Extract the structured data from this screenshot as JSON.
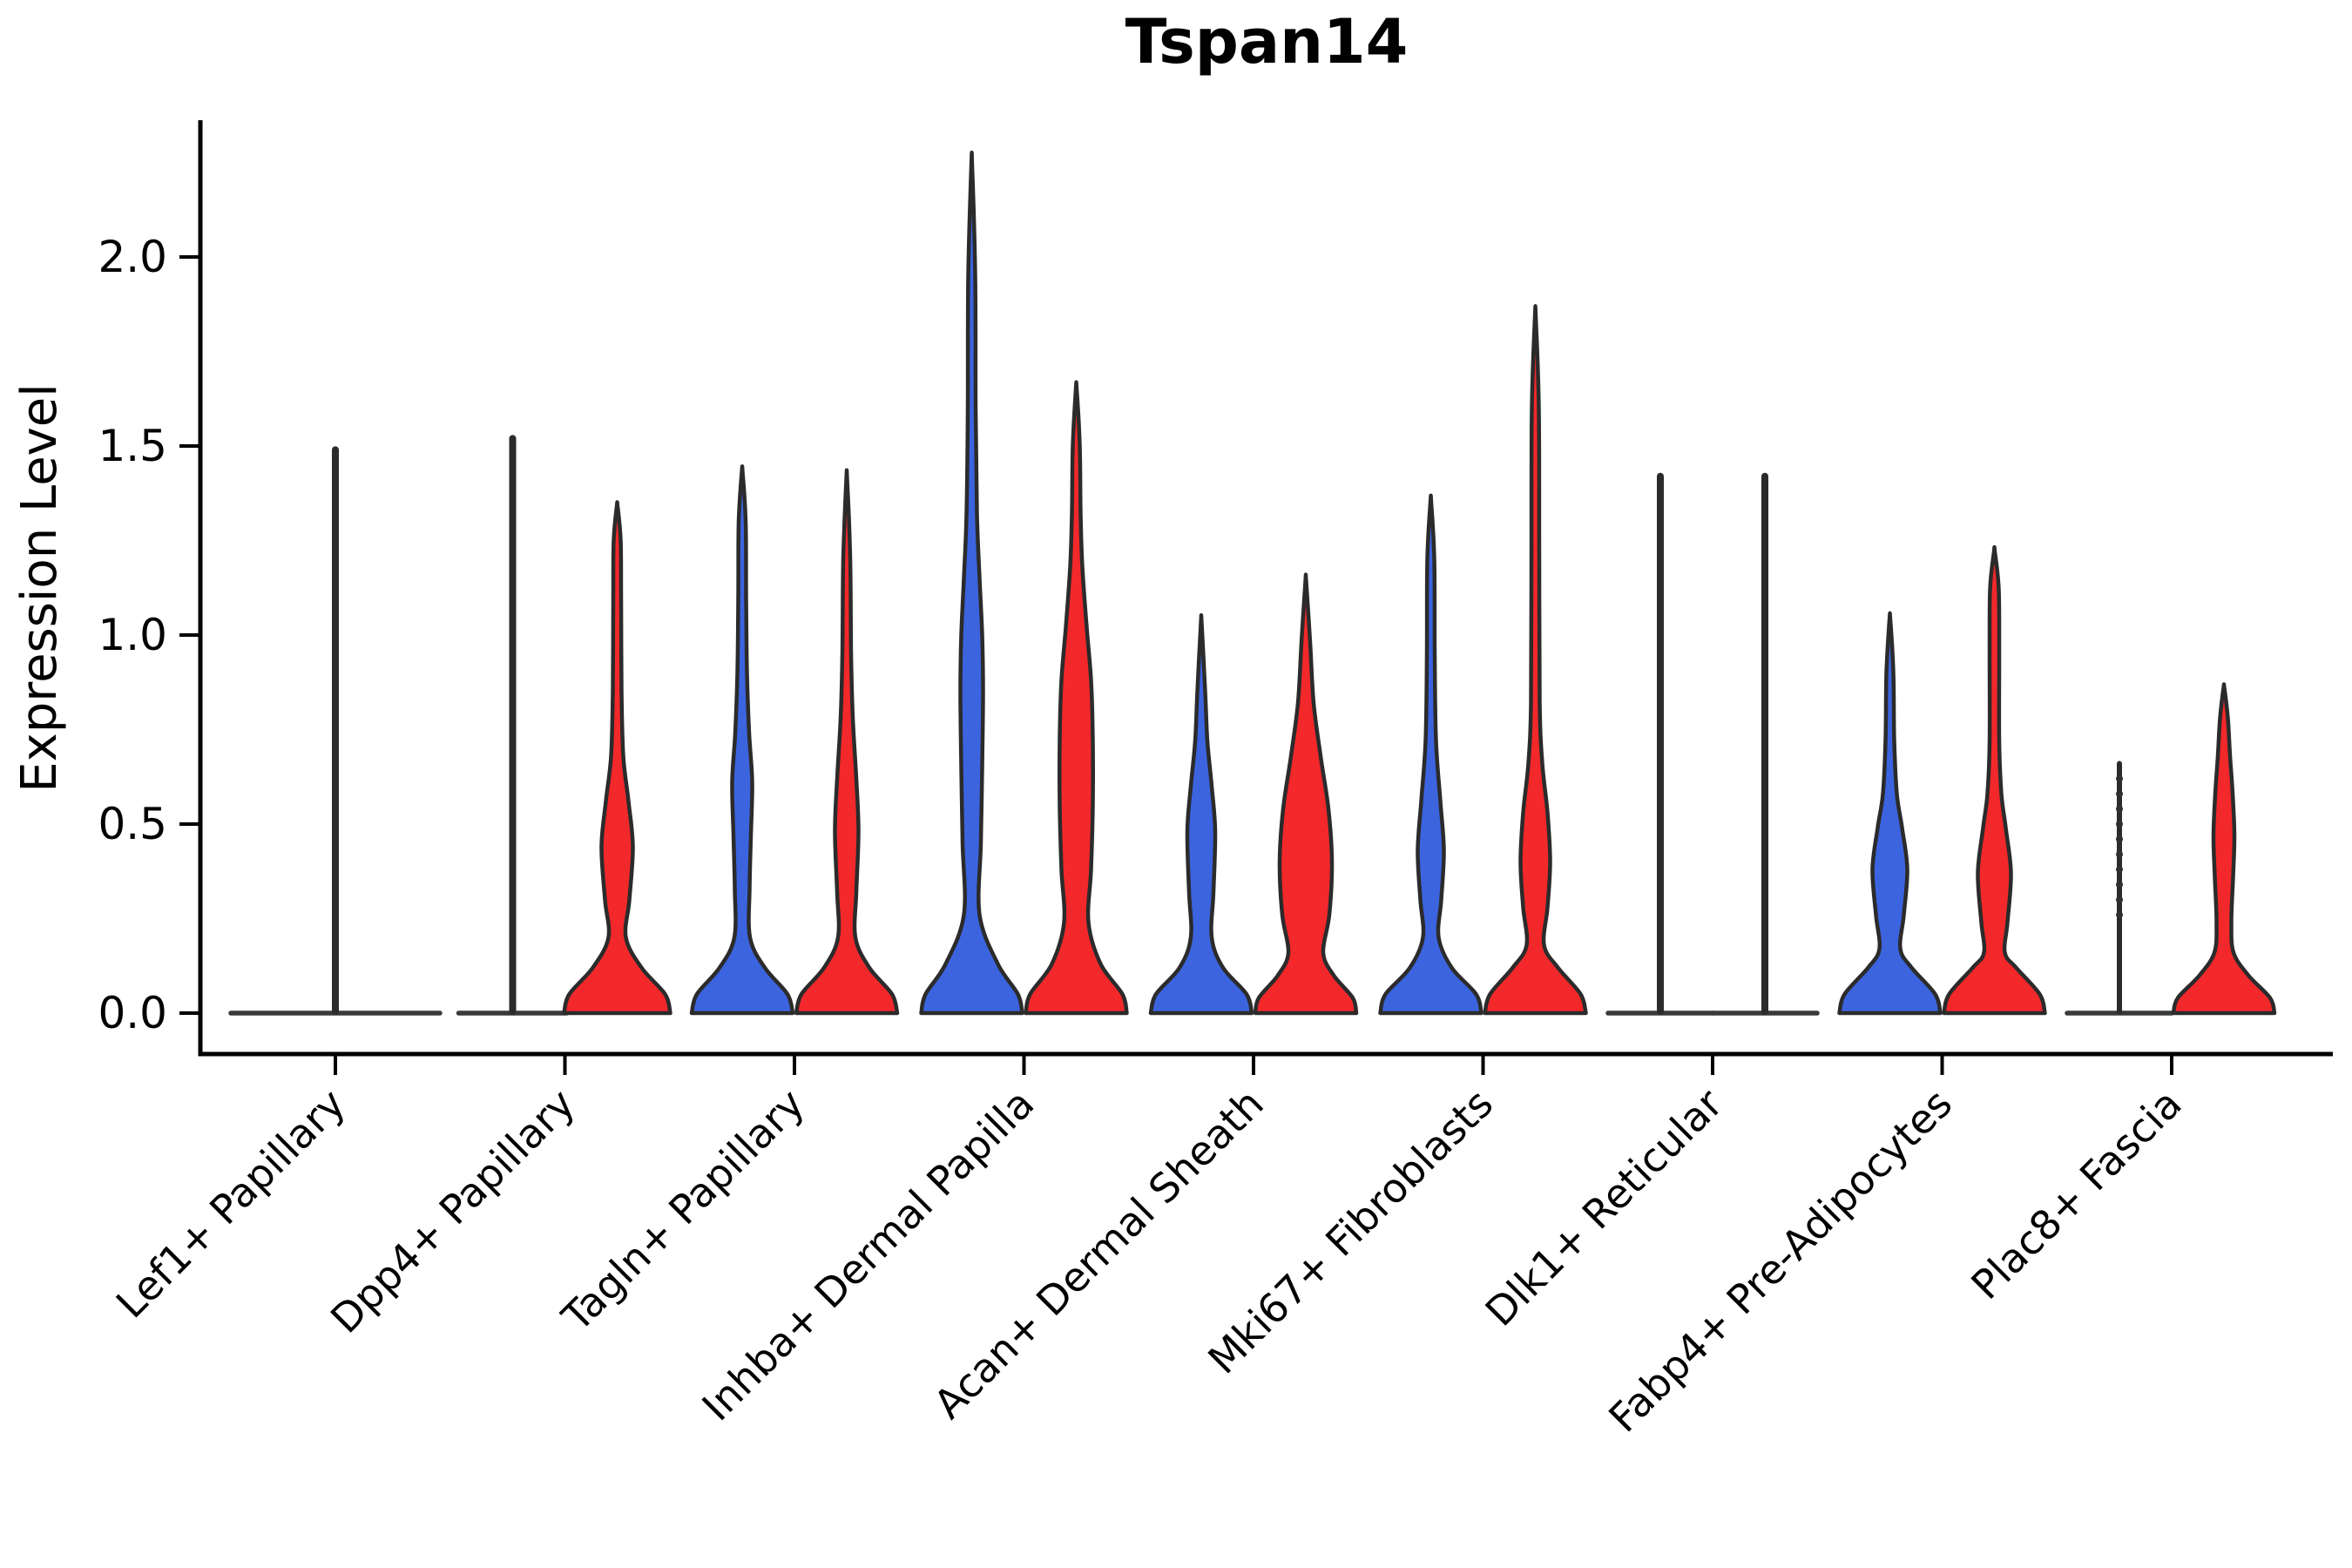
{
  "title": "Tspan14",
  "axes": {
    "ylabel": "Expression Level",
    "ytick_labels": [
      "0.0",
      "0.5",
      "1.0",
      "1.5",
      "2.0"
    ],
    "ytick_values": [
      0.0,
      0.5,
      1.0,
      1.5,
      2.0
    ]
  },
  "colors": {
    "blue": "#3C64DF",
    "red": "#F2282B",
    "outline": "#2B2B2B",
    "flat_line": "#3A3A3A",
    "axis": "#000000",
    "text": "#000000"
  },
  "chart_data": {
    "type": "violin",
    "title": "Tspan14",
    "xlabel": "",
    "ylabel": "Expression Level",
    "yticks": [
      0.0,
      0.5,
      1.0,
      1.5,
      2.0
    ],
    "ylim": [
      -0.11,
      2.36
    ],
    "grid": false,
    "legend_position": "none",
    "groups": [
      "blue (left violin)",
      "red (right violin)"
    ],
    "categories": [
      "Lef1+ Papillary",
      "Dpp4+ Papillary",
      "Tagln+ Papillary",
      "Inhba+ Dermal Papilla",
      "Acan+ Dermal Sheath",
      "Mki67+ Fibroblasts",
      "Dlk1+ Reticular",
      "Fabp4+ Pre-Adipocytes",
      "Plac8+ Fascia"
    ],
    "max_expression_by_violin": {
      "Lef1+ Papillary": {
        "single": 1.49
      },
      "Dpp4+ Papillary": {
        "blue": 1.52,
        "red": 1.34
      },
      "Tagln+ Papillary": {
        "blue": 1.43,
        "red": 1.41
      },
      "Inhba+ Dermal Papilla": {
        "blue": 2.24,
        "red": 1.65
      },
      "Acan+ Dermal Sheath": {
        "blue": 1.03,
        "red": 1.14
      },
      "Mki67+ Fibroblasts": {
        "blue": 1.35,
        "red": 1.84
      },
      "Dlk1+ Reticular": {
        "blue": 1.42,
        "red": 1.42
      },
      "Fabp4+ Pre-Adipocytes": {
        "blue": 1.04,
        "red": 1.22
      },
      "Plac8+ Fascia": {
        "blue": 0.66,
        "red": 0.86
      }
    },
    "violins": [
      {
        "category": 0,
        "group": "single",
        "style": "flat_spike",
        "offset": 0,
        "flat_halfwidth": 120,
        "max": 1.49
      },
      {
        "category": 1,
        "group": "blue",
        "style": "flat_spike",
        "offset": -60,
        "flat_halfwidth": 62,
        "max": 1.52
      },
      {
        "category": 1,
        "group": "red",
        "style": "violin",
        "offset": 60,
        "max": 1.34,
        "profile": [
          [
            0,
            61
          ],
          [
            0.05,
            55
          ],
          [
            0.12,
            28
          ],
          [
            0.2,
            10
          ],
          [
            0.3,
            14
          ],
          [
            0.44,
            18
          ],
          [
            0.56,
            13
          ],
          [
            0.68,
            7
          ],
          [
            0.85,
            5
          ],
          [
            1.1,
            4.5
          ],
          [
            1.25,
            4
          ],
          [
            1.34,
            0.5
          ]
        ]
      },
      {
        "category": 2,
        "group": "blue",
        "style": "violin",
        "offset": -60,
        "max": 1.43,
        "profile": [
          [
            0,
            58
          ],
          [
            0.05,
            52
          ],
          [
            0.12,
            26
          ],
          [
            0.2,
            9
          ],
          [
            0.33,
            8.5
          ],
          [
            0.47,
            10
          ],
          [
            0.61,
            11.5
          ],
          [
            0.74,
            8
          ],
          [
            0.9,
            5.5
          ],
          [
            1.1,
            4.5
          ],
          [
            1.3,
            4
          ],
          [
            1.43,
            0.5
          ]
        ]
      },
      {
        "category": 2,
        "group": "red",
        "style": "violin",
        "offset": 60,
        "max": 1.41,
        "profile": [
          [
            0,
            58
          ],
          [
            0.05,
            52
          ],
          [
            0.12,
            26
          ],
          [
            0.2,
            10
          ],
          [
            0.32,
            11
          ],
          [
            0.48,
            13.5
          ],
          [
            0.62,
            11
          ],
          [
            0.78,
            7
          ],
          [
            0.95,
            5
          ],
          [
            1.2,
            4
          ],
          [
            1.41,
            0.5
          ]
        ]
      },
      {
        "category": 3,
        "group": "blue",
        "style": "violin",
        "offset": -60,
        "max": 2.24,
        "profile": [
          [
            0,
            58
          ],
          [
            0.05,
            53
          ],
          [
            0.13,
            30
          ],
          [
            0.26,
            9
          ],
          [
            0.45,
            10.5
          ],
          [
            0.65,
            12
          ],
          [
            0.85,
            13
          ],
          [
            1.0,
            12
          ],
          [
            1.15,
            9
          ],
          [
            1.32,
            6
          ],
          [
            1.6,
            4.5
          ],
          [
            1.95,
            4
          ],
          [
            2.24,
            0.5
          ]
        ]
      },
      {
        "category": 3,
        "group": "red",
        "style": "violin",
        "offset": 60,
        "max": 1.65,
        "profile": [
          [
            0,
            58
          ],
          [
            0.05,
            53
          ],
          [
            0.13,
            28
          ],
          [
            0.24,
            14
          ],
          [
            0.38,
            17
          ],
          [
            0.55,
            19
          ],
          [
            0.72,
            19
          ],
          [
            0.88,
            17
          ],
          [
            1.02,
            12
          ],
          [
            1.18,
            7
          ],
          [
            1.32,
            5
          ],
          [
            1.5,
            4
          ],
          [
            1.65,
            0.5
          ]
        ]
      },
      {
        "category": 4,
        "group": "blue",
        "style": "violin",
        "offset": -60,
        "max": 1.03,
        "profile": [
          [
            0,
            58
          ],
          [
            0.05,
            52
          ],
          [
            0.12,
            25
          ],
          [
            0.2,
            12
          ],
          [
            0.32,
            14
          ],
          [
            0.48,
            16
          ],
          [
            0.6,
            12
          ],
          [
            0.72,
            7
          ],
          [
            0.85,
            4.5
          ],
          [
            1.03,
            0.5
          ]
        ]
      },
      {
        "category": 4,
        "group": "red",
        "style": "violin",
        "offset": 60,
        "max": 1.14,
        "profile": [
          [
            0,
            58
          ],
          [
            0.04,
            54
          ],
          [
            0.1,
            32
          ],
          [
            0.16,
            20
          ],
          [
            0.26,
            27
          ],
          [
            0.4,
            30
          ],
          [
            0.54,
            26
          ],
          [
            0.68,
            17
          ],
          [
            0.82,
            9
          ],
          [
            0.98,
            5
          ],
          [
            1.14,
            0.5
          ]
        ]
      },
      {
        "category": 5,
        "group": "blue",
        "style": "violin",
        "offset": -60,
        "max": 1.35,
        "profile": [
          [
            0,
            58
          ],
          [
            0.05,
            52
          ],
          [
            0.12,
            24
          ],
          [
            0.2,
            9
          ],
          [
            0.3,
            12
          ],
          [
            0.43,
            15
          ],
          [
            0.56,
            11
          ],
          [
            0.72,
            6
          ],
          [
            0.95,
            4.5
          ],
          [
            1.2,
            4
          ],
          [
            1.35,
            0.5
          ]
        ]
      },
      {
        "category": 5,
        "group": "red",
        "style": "violin",
        "offset": 60,
        "max": 1.84,
        "profile": [
          [
            0,
            58
          ],
          [
            0.05,
            52
          ],
          [
            0.12,
            26
          ],
          [
            0.18,
            10
          ],
          [
            0.28,
            14
          ],
          [
            0.4,
            17
          ],
          [
            0.53,
            14
          ],
          [
            0.66,
            8
          ],
          [
            0.82,
            5
          ],
          [
            1.2,
            4.5
          ],
          [
            1.6,
            4
          ],
          [
            1.84,
            0.5
          ]
        ]
      },
      {
        "category": 6,
        "group": "blue",
        "style": "flat_spike",
        "offset": -60,
        "flat_halfwidth": 60,
        "max": 1.42
      },
      {
        "category": 6,
        "group": "red",
        "style": "flat_spike",
        "offset": 60,
        "flat_halfwidth": 60,
        "max": 1.42
      },
      {
        "category": 7,
        "group": "blue",
        "style": "violin",
        "offset": -60,
        "max": 1.04,
        "profile": [
          [
            0,
            58
          ],
          [
            0.05,
            52
          ],
          [
            0.12,
            25
          ],
          [
            0.17,
            12
          ],
          [
            0.26,
            16
          ],
          [
            0.38,
            20
          ],
          [
            0.49,
            14
          ],
          [
            0.58,
            8
          ],
          [
            0.72,
            5
          ],
          [
            0.9,
            4
          ],
          [
            1.04,
            0.5
          ]
        ]
      },
      {
        "category": 7,
        "group": "red",
        "style": "violin",
        "offset": 60,
        "max": 1.22,
        "profile": [
          [
            0,
            58
          ],
          [
            0.05,
            52
          ],
          [
            0.12,
            25
          ],
          [
            0.16,
            12
          ],
          [
            0.24,
            15
          ],
          [
            0.37,
            19
          ],
          [
            0.49,
            13
          ],
          [
            0.58,
            8
          ],
          [
            0.72,
            5.5
          ],
          [
            0.95,
            5.5
          ],
          [
            1.12,
            5
          ],
          [
            1.22,
            0.5
          ]
        ]
      },
      {
        "category": 8,
        "group": "blue",
        "style": "flat_spike",
        "offset": -60,
        "flat_halfwidth": 60,
        "max": 0.66,
        "dots": [
          0.26,
          0.3,
          0.34,
          0.38,
          0.42,
          0.46,
          0.5,
          0.54,
          0.58,
          0.62
        ]
      },
      {
        "category": 8,
        "group": "red",
        "style": "violin",
        "offset": 60,
        "max": 0.86,
        "profile": [
          [
            0,
            58
          ],
          [
            0.04,
            53
          ],
          [
            0.1,
            28
          ],
          [
            0.16,
            11
          ],
          [
            0.24,
            8.5
          ],
          [
            0.36,
            10.5
          ],
          [
            0.47,
            12
          ],
          [
            0.58,
            10
          ],
          [
            0.68,
            7
          ],
          [
            0.78,
            4.5
          ],
          [
            0.86,
            0.5
          ]
        ]
      }
    ]
  }
}
